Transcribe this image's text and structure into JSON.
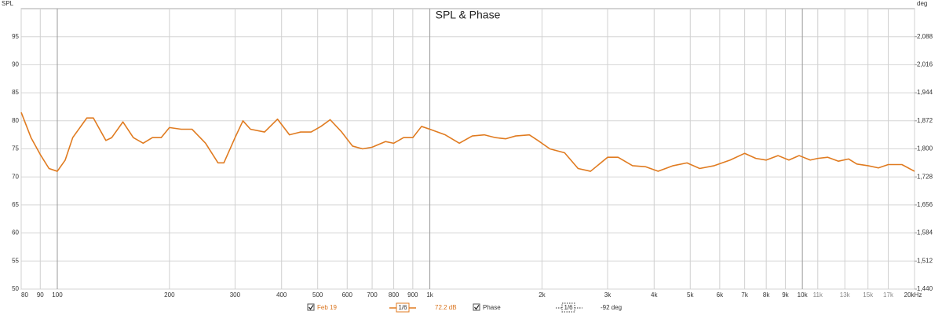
{
  "chart_data": {
    "type": "line",
    "title": "SPL & Phase",
    "y_label": "SPL",
    "y2_label": "deg",
    "log_x": true,
    "grid": true,
    "xlim": [
      80,
      20000
    ],
    "ylim": [
      50,
      100
    ],
    "y2lim": [
      1440,
      2160
    ],
    "xticks": [
      80,
      90,
      100,
      200,
      300,
      400,
      500,
      600,
      700,
      800,
      900,
      {
        "value": 1000,
        "label": "1k"
      },
      {
        "value": 2000,
        "label": "2k"
      },
      {
        "value": 3000,
        "label": "3k"
      },
      {
        "value": 4000,
        "label": "4k"
      },
      {
        "value": 5000,
        "label": "5k"
      },
      {
        "value": 6000,
        "label": "6k"
      },
      {
        "value": 7000,
        "label": "7k"
      },
      {
        "value": 8000,
        "label": "8k"
      },
      {
        "value": 9000,
        "label": "9k"
      },
      {
        "value": 10000,
        "label": "10k"
      },
      {
        "value": 11000,
        "label": "11k"
      },
      {
        "value": 13000,
        "label": "13k"
      },
      {
        "value": 15000,
        "label": "15k"
      },
      {
        "value": 17000,
        "label": "17k"
      },
      {
        "value": 20000,
        "label": "20kHz"
      }
    ],
    "yticks": [
      50,
      55,
      60,
      65,
      70,
      75,
      80,
      85,
      90,
      95
    ],
    "y2ticks": [
      {
        "value": 1440,
        "label": "1,440"
      },
      {
        "value": 1512,
        "label": "1,512"
      },
      {
        "value": 1584,
        "label": "1,584"
      },
      {
        "value": 1656,
        "label": "1,656"
      },
      {
        "value": 1728,
        "label": "1,728"
      },
      {
        "value": 1800,
        "label": "1,800"
      },
      {
        "value": 1872,
        "label": "1,872"
      },
      {
        "value": 1944,
        "label": "1,944"
      },
      {
        "value": 2016,
        "label": "2,016"
      },
      {
        "value": 2088,
        "label": "2,088"
      }
    ],
    "x": [
      80,
      85,
      90,
      95,
      100,
      105,
      110,
      120,
      125,
      135,
      140,
      150,
      160,
      170,
      180,
      190,
      200,
      215,
      230,
      250,
      270,
      280,
      300,
      315,
      330,
      360,
      390,
      420,
      450,
      480,
      510,
      540,
      580,
      620,
      660,
      700,
      760,
      800,
      850,
      900,
      950,
      1000,
      1100,
      1200,
      1300,
      1400,
      1500,
      1600,
      1700,
      1850,
      1950,
      2100,
      2300,
      2500,
      2700,
      3000,
      3200,
      3500,
      3800,
      4100,
      4500,
      4900,
      5300,
      5800,
      6400,
      7000,
      7500,
      8000,
      8600,
      9200,
      9800,
      10500,
      11000,
      11700,
      12500,
      13300,
      14000,
      15000,
      16000,
      17000,
      18500,
      20000
    ],
    "series": [
      {
        "name": "Feb 19",
        "color": "#e07b20",
        "values": [
          81.5,
          77,
          74,
          71.5,
          71,
          73,
          77,
          80.5,
          80.5,
          76.5,
          77,
          79.8,
          77,
          76,
          77,
          77,
          78.8,
          78.5,
          78.5,
          76,
          72.5,
          72.5,
          77,
          80,
          78.5,
          78,
          80.3,
          77.5,
          78,
          78,
          79,
          80.2,
          78,
          75.5,
          75,
          75.3,
          76.3,
          76,
          77,
          77,
          79,
          78.5,
          77.5,
          76,
          77.3,
          77.5,
          77,
          76.8,
          77.3,
          77.5,
          76.5,
          75,
          74.3,
          71.5,
          71,
          73.5,
          73.5,
          72,
          71.8,
          71,
          72,
          72.5,
          71.5,
          72,
          73,
          74.2,
          73.3,
          73,
          73.8,
          73,
          73.8,
          73,
          73.3,
          73.5,
          72.8,
          73.2,
          72.3,
          72,
          71.6,
          72.2,
          72.2,
          71
        ]
      }
    ],
    "legend": [
      {
        "label": "Feb 19",
        "smoothing": "1/6",
        "readout": "72.2 dB"
      },
      {
        "label": "Phase",
        "smoothing": "1/6",
        "readout": "-92 deg"
      }
    ]
  }
}
